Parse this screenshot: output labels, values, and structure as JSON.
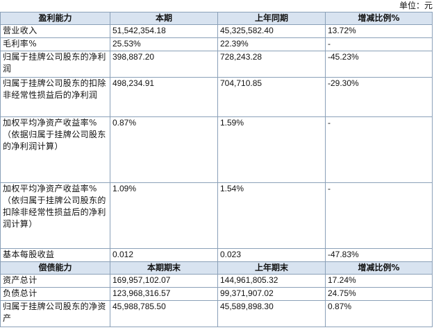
{
  "unit_label": "单位：元",
  "profitability": {
    "headers": [
      "盈利能力",
      "本期",
      "上年同期",
      "增减比例%"
    ],
    "rows": [
      {
        "label": "营业收入",
        "current": "51,542,354.18",
        "prior": "45,325,582.40",
        "change": "13.72%"
      },
      {
        "label": "毛利率%",
        "current": "25.53%",
        "prior": "22.39%",
        "change": "-"
      },
      {
        "label": "归属于挂牌公司股东的净利润",
        "current": "398,887.20",
        "prior": "728,243.28",
        "change": "-45.23%"
      },
      {
        "label": "归属于挂牌公司股东的扣除非经常性损益后的净利润",
        "current": "498,234.91",
        "prior": "704,710.85",
        "change": "-29.30%"
      },
      {
        "label": "加权平均净资产收益率%（依据归属于挂牌公司股东的净利润计算）",
        "current": "0.87%",
        "prior": "1.59%",
        "change": "-"
      },
      {
        "label": "加权平均净资产收益率%（依归属于挂牌公司股东的扣除非经常性损益后的净利润计算）",
        "current": "1.09%",
        "prior": "1.54%",
        "change": "-"
      },
      {
        "label": "基本每股收益",
        "current": "0.012",
        "prior": "0.023",
        "change": "-47.83%"
      }
    ]
  },
  "solvency": {
    "headers": [
      "偿债能力",
      "本期期末",
      "上年期末",
      "增减比例%"
    ],
    "rows": [
      {
        "label": "资产总计",
        "current": "169,957,102.07",
        "prior": "144,961,805.32",
        "change": "17.24%"
      },
      {
        "label": "负债总计",
        "current": "123,968,316.57",
        "prior": "99,371,907.02",
        "change": "24.75%"
      },
      {
        "label": "归属于挂牌公司股东的净资产",
        "current": "45,988,785.50",
        "prior": "45,589,898.30",
        "change": "0.87%"
      }
    ]
  }
}
